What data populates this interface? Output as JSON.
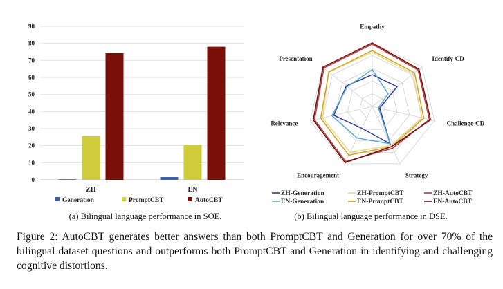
{
  "chart_data": [
    {
      "type": "bar",
      "categories": [
        "ZH",
        "EN"
      ],
      "ylim": [
        0,
        90
      ],
      "yticks": [
        0,
        10,
        20,
        30,
        40,
        50,
        60,
        70,
        80,
        90
      ],
      "grid": true,
      "legend_position": "bottom",
      "series": [
        {
          "name": "Generation",
          "color": "#3b5fae",
          "values": [
            0.3,
            1.6
          ]
        },
        {
          "name": "PromptCBT",
          "color": "#cfcc3b",
          "values": [
            25.6,
            20.6
          ]
        },
        {
          "name": "AutoCBT",
          "color": "#7a0e08",
          "values": [
            74.2,
            78.0
          ]
        }
      ],
      "subcaption": "(a) Bilingual language performance in SOE."
    },
    {
      "type": "radar",
      "axes": [
        "Empathy",
        "Identify-CD",
        "Challenge-CD",
        "Strategy",
        "Encouragement",
        "Relevance",
        "Presentation"
      ],
      "rlim": [
        0,
        1
      ],
      "legend_position": "bottom",
      "series": [
        {
          "name": "ZH-Generation",
          "color": "#2e3f8f",
          "values": [
            0.5,
            0.5,
            0.12,
            0.65,
            0.38,
            0.62,
            0.52
          ]
        },
        {
          "name": "ZH-PromptCBT",
          "color": "#e8d98a",
          "values": [
            0.85,
            0.82,
            0.8,
            0.68,
            0.8,
            0.8,
            0.88
          ]
        },
        {
          "name": "ZH-AutoCBT",
          "color": "#b0393a",
          "values": [
            0.98,
            0.92,
            0.92,
            0.73,
            0.96,
            0.93,
            0.97
          ]
        },
        {
          "name": "EN-Generation",
          "color": "#5aa8d8",
          "values": [
            0.58,
            0.32,
            0.1,
            0.65,
            0.55,
            0.65,
            0.5
          ]
        },
        {
          "name": "EN-PromptCBT",
          "color": "#d4a017",
          "values": [
            0.88,
            0.85,
            0.83,
            0.7,
            0.85,
            0.83,
            0.87
          ]
        },
        {
          "name": "EN-AutoCBT",
          "color": "#6e0d0d",
          "values": [
            1.0,
            0.94,
            0.94,
            0.7,
            0.98,
            0.95,
            0.99
          ]
        }
      ],
      "subcaption": "(b) Bilingual language performance in DSE."
    }
  ],
  "caption": "Figure 2: AutoCBT generates better answers than both PromptCBT and Generation for over 70% of the bilingual dataset questions and outperforms both PromptCBT and Generation in identifying and challenging cognitive distortions."
}
